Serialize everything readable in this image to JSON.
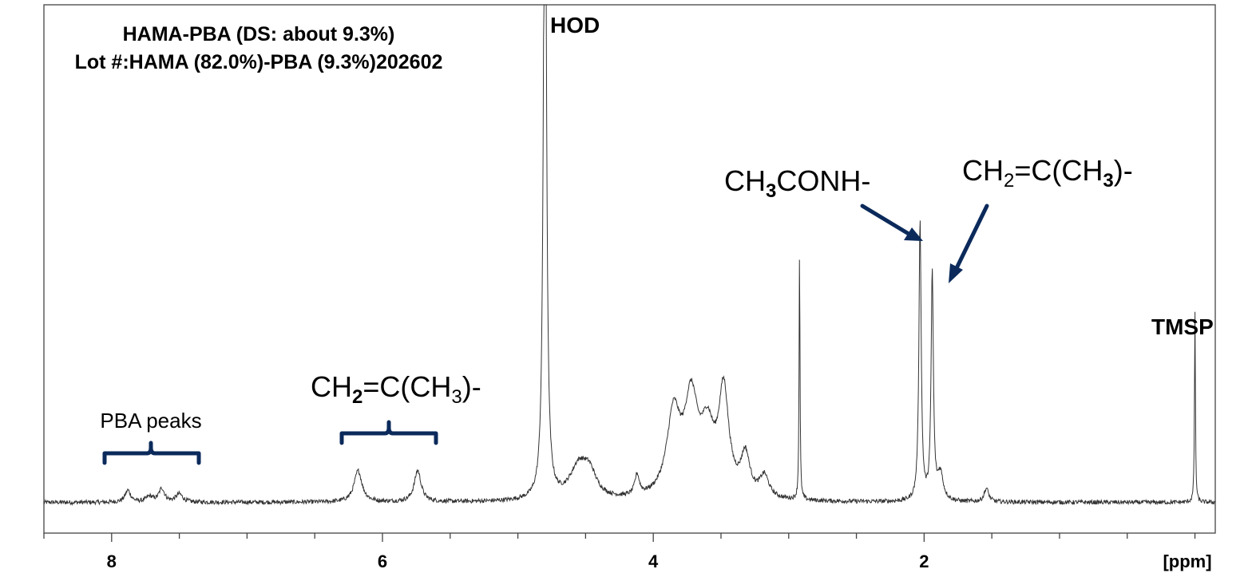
{
  "chart_data": {
    "type": "line",
    "title": "HAMA-PBA (DS: about 9.3%)",
    "subtitle": "Lot #:HAMA (82.0%)-PBA (9.3%)202602",
    "xlabel": "[ppm]",
    "ylabel": "",
    "x_reversed": true,
    "xlim": [
      8.5,
      -0.15
    ],
    "ylim": [
      -0.04,
      1.0
    ],
    "grid": false,
    "x_ticks": [
      8,
      6,
      4,
      2
    ],
    "x_tick_labels": [
      "8",
      "6",
      "4",
      "2"
    ],
    "minor_tick_step": 0.5,
    "line_color": "#333333",
    "annotation_color": "#0b2a5b",
    "baseline": 0.005,
    "peaks": [
      {
        "ppm": 7.88,
        "height": 0.022,
        "width": 0.025
      },
      {
        "ppm": 7.72,
        "height": 0.01,
        "width": 0.03
      },
      {
        "ppm": 7.63,
        "height": 0.025,
        "width": 0.025
      },
      {
        "ppm": 7.5,
        "height": 0.015,
        "width": 0.03
      },
      {
        "ppm": 6.18,
        "height": 0.058,
        "width": 0.035
      },
      {
        "ppm": 5.74,
        "height": 0.058,
        "width": 0.03
      },
      {
        "ppm": 4.8,
        "height": 1.5,
        "width": 0.012
      },
      {
        "ppm": 4.55,
        "height": 0.06,
        "width": 0.08
      },
      {
        "ppm": 4.47,
        "height": 0.04,
        "width": 0.06
      },
      {
        "ppm": 4.12,
        "height": 0.038,
        "width": 0.02
      },
      {
        "ppm": 3.85,
        "height": 0.15,
        "width": 0.06
      },
      {
        "ppm": 3.72,
        "height": 0.17,
        "width": 0.06
      },
      {
        "ppm": 3.6,
        "height": 0.11,
        "width": 0.06
      },
      {
        "ppm": 3.48,
        "height": 0.19,
        "width": 0.045
      },
      {
        "ppm": 3.32,
        "height": 0.075,
        "width": 0.04
      },
      {
        "ppm": 3.18,
        "height": 0.04,
        "width": 0.04
      },
      {
        "ppm": 2.92,
        "height": 0.46,
        "width": 0.004
      },
      {
        "ppm": 2.03,
        "height": 0.52,
        "width": 0.01
      },
      {
        "ppm": 1.94,
        "height": 0.42,
        "width": 0.01
      },
      {
        "ppm": 1.88,
        "height": 0.05,
        "width": 0.025
      },
      {
        "ppm": 1.54,
        "height": 0.025,
        "width": 0.02
      },
      {
        "ppm": 0.0,
        "height": 0.355,
        "width": 0.004
      }
    ],
    "annotations": [
      {
        "text": "HOD",
        "ppm": 4.8
      },
      {
        "text": "TMSP",
        "ppm": 0.0
      },
      {
        "text_parts": [
          "CH",
          "3",
          "CONH-"
        ],
        "ppm": 2.03
      },
      {
        "text_parts": [
          "CH",
          "2",
          "=C(CH",
          "3",
          ")-"
        ],
        "ppm": 1.94
      },
      {
        "text_parts": [
          "CH",
          "2",
          "=C(CH",
          "3",
          ")-"
        ],
        "ppm_range": [
          6.3,
          5.6
        ]
      },
      {
        "text": "PBA peaks",
        "ppm_range": [
          8.05,
          7.35
        ]
      }
    ]
  }
}
